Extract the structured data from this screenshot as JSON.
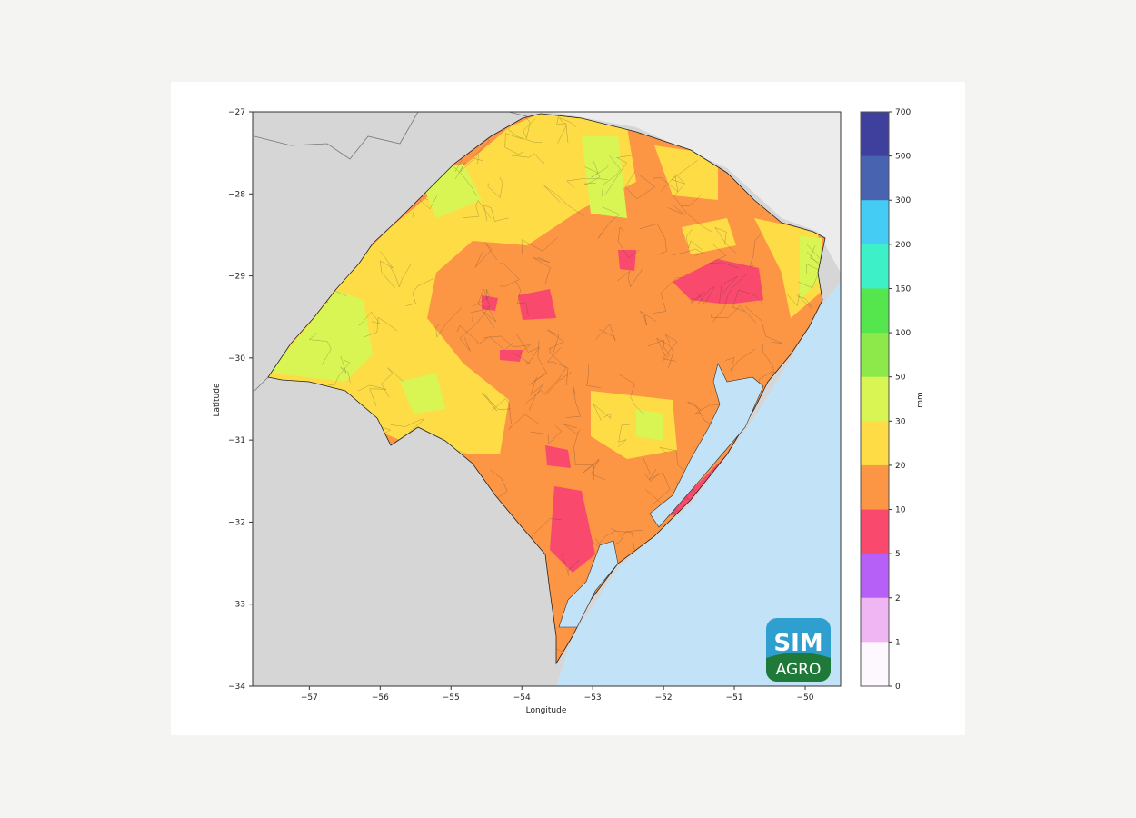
{
  "map": {
    "xlabel": "Longitude",
    "ylabel": "Latitude",
    "xlim": [
      -57.8,
      -49.5
    ],
    "ylim": [
      -34,
      -27
    ],
    "xticks": [
      "−57",
      "−56",
      "−55",
      "−54",
      "−53",
      "−52",
      "−51",
      "−50"
    ],
    "yticks": [
      "−27",
      "−28",
      "−29",
      "−30",
      "−31",
      "−32",
      "−33",
      "−34"
    ],
    "colors": {
      "ocean": "#c2e3f7",
      "neighbors": "#d6d6d6",
      "santa_catarina": "#ececec",
      "base": "#fc9544"
    }
  },
  "colorbar": {
    "label": "mm",
    "ticks": [
      "700",
      "500",
      "300",
      "200",
      "150",
      "100",
      "50",
      "30",
      "20",
      "10",
      "5",
      "2",
      "1",
      "0"
    ],
    "colors": [
      "#3f3f9e",
      "#4863b0",
      "#44ccf5",
      "#3ef0c8",
      "#55e64d",
      "#8de84a",
      "#d9f553",
      "#fddc45",
      "#fc9544",
      "#f94a6e",
      "#b660f7",
      "#f0b6f4",
      "#fdf8fd"
    ]
  },
  "logo": {
    "line1": "SIM",
    "line2": "AGRO"
  }
}
